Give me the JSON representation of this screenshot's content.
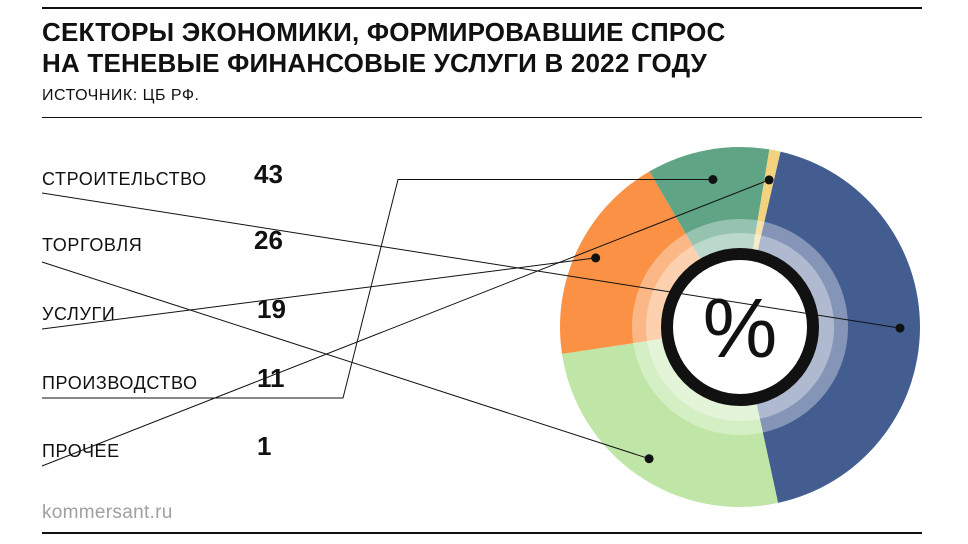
{
  "header": {
    "title_lines": [
      "СЕКТОРЫ ЭКОНОМИКИ, ФОРМИРОВАВШИЕ СПРОС",
      "НА ТЕНЕВЫЕ ФИНАНСОВЫЕ УСЛУГИ В 2022 ГОДУ"
    ],
    "source": "ИСТОЧНИК: ЦБ РФ."
  },
  "footer": {
    "brand": "kommersant.ru"
  },
  "chart_data": {
    "type": "pie",
    "title": "СЕКТОРЫ ЭКОНОМИКИ, ФОРМИРОВАВШИЕ СПРОС НА ТЕНЕВЫЕ ФИНАНСОВЫЕ УСЛУГИ В 2022 ГОДУ",
    "unit_symbol": "%",
    "categories": [
      "СТРОИТЕЛЬСТВО",
      "ТОРГОВЛЯ",
      "УСЛУГИ",
      "ПРОИЗВОДСТВО",
      "ПРОЧЕЕ"
    ],
    "values": [
      43,
      26,
      19,
      11,
      1
    ],
    "colors": [
      "#435d91",
      "#bfe6a6",
      "#fb9145",
      "#5fa484",
      "#f2d27f"
    ],
    "legend": "left"
  }
}
